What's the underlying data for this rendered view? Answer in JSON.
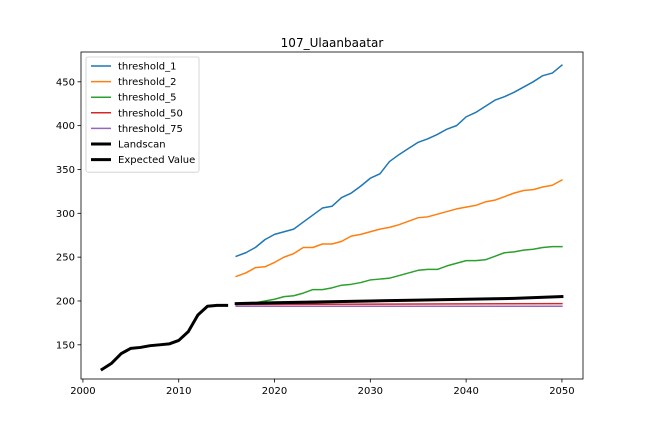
{
  "chart_data": {
    "type": "line",
    "title": "107_Ulaanbaatar",
    "xlabel": "",
    "ylabel": "",
    "xlim": [
      1999.8,
      2052.2
    ],
    "ylim": [
      111,
      484
    ],
    "xticks": [
      2000,
      2010,
      2020,
      2030,
      2040,
      2050
    ],
    "yticks": [
      150,
      200,
      250,
      300,
      350,
      400,
      450
    ],
    "grid": false,
    "legend_position": "upper-left",
    "series": [
      {
        "name": "threshold_1",
        "color": "#1f77b4",
        "width": 1.5,
        "x": [
          2016,
          2017,
          2018,
          2019,
          2020,
          2021,
          2022,
          2023,
          2024,
          2025,
          2026,
          2027,
          2028,
          2029,
          2030,
          2031,
          2032,
          2033,
          2034,
          2035,
          2036,
          2037,
          2038,
          2039,
          2040,
          2041,
          2042,
          2043,
          2044,
          2045,
          2046,
          2047,
          2048,
          2049,
          2050
        ],
        "y": [
          251,
          255,
          261,
          270,
          276,
          279,
          282,
          290,
          298,
          306,
          308,
          318,
          323,
          331,
          340,
          345,
          359,
          367,
          374,
          381,
          385,
          390,
          396,
          400,
          410,
          415,
          422,
          429,
          433,
          438,
          444,
          450,
          457,
          460,
          469
        ]
      },
      {
        "name": "threshold_2",
        "color": "#ff7f0e",
        "width": 1.5,
        "x": [
          2016,
          2017,
          2018,
          2019,
          2020,
          2021,
          2022,
          2023,
          2024,
          2025,
          2026,
          2027,
          2028,
          2029,
          2030,
          2031,
          2032,
          2033,
          2034,
          2035,
          2036,
          2037,
          2038,
          2039,
          2040,
          2041,
          2042,
          2043,
          2044,
          2045,
          2046,
          2047,
          2048,
          2049,
          2050
        ],
        "y": [
          228,
          232,
          238,
          239,
          244,
          250,
          254,
          261,
          261,
          265,
          265,
          268,
          274,
          276,
          279,
          282,
          284,
          287,
          291,
          295,
          296,
          299,
          302,
          305,
          307,
          309,
          313,
          315,
          319,
          323,
          326,
          327,
          330,
          332,
          338
        ]
      },
      {
        "name": "threshold_5",
        "color": "#2ca02c",
        "width": 1.5,
        "x": [
          2016,
          2017,
          2018,
          2019,
          2020,
          2021,
          2022,
          2023,
          2024,
          2025,
          2026,
          2027,
          2028,
          2029,
          2030,
          2031,
          2032,
          2033,
          2034,
          2035,
          2036,
          2037,
          2038,
          2039,
          2040,
          2041,
          2042,
          2043,
          2044,
          2045,
          2046,
          2047,
          2048,
          2049,
          2050
        ],
        "y": [
          196,
          197,
          198,
          200,
          202,
          205,
          206,
          209,
          213,
          213,
          215,
          218,
          219,
          221,
          224,
          225,
          226,
          229,
          232,
          235,
          236,
          236,
          240,
          243,
          246,
          246,
          247,
          251,
          255,
          256,
          258,
          259,
          261,
          262,
          262
        ]
      },
      {
        "name": "threshold_50",
        "color": "#d62728",
        "width": 1.5,
        "x": [
          2016,
          2050
        ],
        "y": [
          196,
          197
        ]
      },
      {
        "name": "threshold_75",
        "color": "#9467bd",
        "width": 1.5,
        "x": [
          2016,
          2050
        ],
        "y": [
          194,
          194
        ]
      },
      {
        "name": "Landscan",
        "color": "#000000",
        "width": 3,
        "x": [
          2002,
          2003,
          2004,
          2005,
          2006,
          2007,
          2008,
          2009,
          2010,
          2011,
          2012,
          2013,
          2014,
          2015
        ],
        "y": [
          122,
          129,
          140,
          146,
          147,
          149,
          150,
          151,
          155,
          165,
          184,
          194,
          195,
          195
        ]
      },
      {
        "name": "Expected Value",
        "color": "#000000",
        "width": 3,
        "x": [
          2016,
          2020,
          2025,
          2030,
          2035,
          2040,
          2045,
          2050
        ],
        "y": [
          197,
          198,
          199,
          200,
          201,
          202,
          203,
          205
        ]
      }
    ]
  }
}
